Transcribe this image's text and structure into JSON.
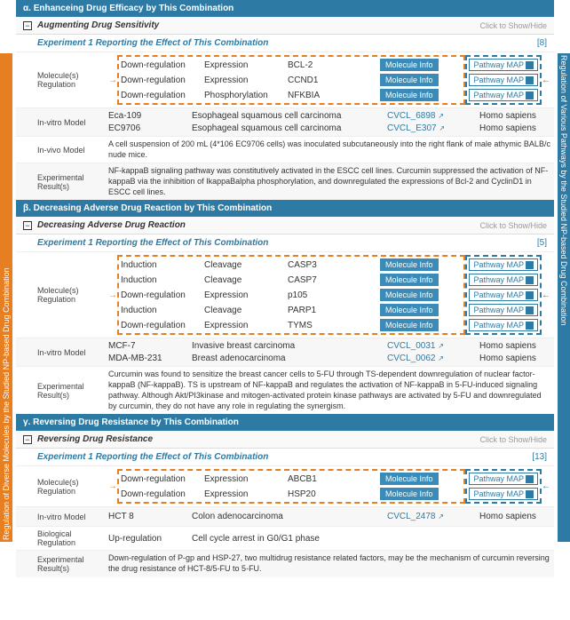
{
  "sideLeft": "Regulation of Diverse Molecules by the Studied NP-based Drug Combination",
  "sideRight": "Regulation of Various Pathways by the Studied NP-based Drug Combination",
  "showHide": "Click to Show/Hide",
  "molInfo": "Molecule Info",
  "pathMap": "Pathway MAP",
  "sections": [
    {
      "hdr": "α. Enhanceing Drug Efficacy by This Combination",
      "sub": "Augmenting Drug Sensitivity",
      "exp": "Experiment 1 Reporting the Effect of This Combination",
      "ref": "[8]",
      "mols": [
        {
          "reg": "Down-regulation",
          "type": "Expression",
          "target": "BCL-2"
        },
        {
          "reg": "Down-regulation",
          "type": "Expression",
          "target": "CCND1"
        },
        {
          "reg": "Down-regulation",
          "type": "Phosphorylation",
          "target": "NFKBIA"
        }
      ],
      "vitro": [
        {
          "cell": "Eca-109",
          "tissue": "Esophageal squamous cell carcinoma",
          "cvcl": "CVCL_6898",
          "sp": "Homo sapiens"
        },
        {
          "cell": "EC9706",
          "tissue": "Esophageal squamous cell carcinoma",
          "cvcl": "CVCL_E307",
          "sp": "Homo sapiens"
        }
      ],
      "vivo": "A cell suspension of 200 mL (4*106 EC9706 cells) was inoculated subcutaneously into the right flank of male athymic BALB/c nude mice.",
      "result": "NF-kappaB signaling pathway was constitutively activated in the ESCC cell lines. Curcumin suppressed the activation of NF-kappaB via the inhibition of IkappaBalpha phosphorylation, and downregulated the expressions of Bcl-2 and CyclinD1 in ESCC cell lines."
    },
    {
      "hdr": "β. Decreasing Adverse Drug Reaction by This Combination",
      "sub": "Decreasing Adverse Drug Reaction",
      "exp": "Experiment 1 Reporting the Effect of This Combination",
      "ref": "[5]",
      "mols": [
        {
          "reg": "Induction",
          "type": "Cleavage",
          "target": "CASP3"
        },
        {
          "reg": "Induction",
          "type": "Cleavage",
          "target": "CASP7"
        },
        {
          "reg": "Down-regulation",
          "type": "Expression",
          "target": "p105"
        },
        {
          "reg": "Induction",
          "type": "Cleavage",
          "target": "PARP1"
        },
        {
          "reg": "Down-regulation",
          "type": "Expression",
          "target": "TYMS"
        }
      ],
      "vitro": [
        {
          "cell": "MCF-7",
          "tissue": "Invasive breast carcinoma",
          "cvcl": "CVCL_0031",
          "sp": "Homo sapiens"
        },
        {
          "cell": "MDA-MB-231",
          "tissue": "Breast adenocarcinoma",
          "cvcl": "CVCL_0062",
          "sp": "Homo sapiens"
        }
      ],
      "result": "Curcumin was found to sensitize the breast cancer cells to 5-FU through TS-dependent downregulation of nuclear factor-kappaB (NF-kappaB). TS is upstream of NF-kappaB and regulates the activation of NF-kappaB in 5-FU-induced signaling pathway. Although Akt/PI3kinase and mitogen-activated protein kinase pathways are activated by 5-FU and downregulated by curcumin, they do not have any role in regulating the synergism."
    },
    {
      "hdr": "γ. Reversing Drug Resistance by This Combination",
      "sub": "Reversing Drug Resistance",
      "exp": "Experiment 1 Reporting the Effect of This Combination",
      "ref": "[13]",
      "mols": [
        {
          "reg": "Down-regulation",
          "type": "Expression",
          "target": "ABCB1"
        },
        {
          "reg": "Down-regulation",
          "type": "Expression",
          "target": "HSP20"
        }
      ],
      "bio": {
        "reg": "Up-regulation",
        "desc": "Cell cycle arrest in G0/G1 phase"
      },
      "vitro": [
        {
          "cell": "HCT 8",
          "tissue": "Colon adenocarcinoma",
          "cvcl": "CVCL_2478",
          "sp": "Homo sapiens"
        }
      ],
      "result": "Down-regulation of P-gp and HSP-27, two multidrug resistance related factors, may be the mechanism of curcumin reversing the drug resistance of HCT-8/5-FU to 5-FU."
    }
  ]
}
